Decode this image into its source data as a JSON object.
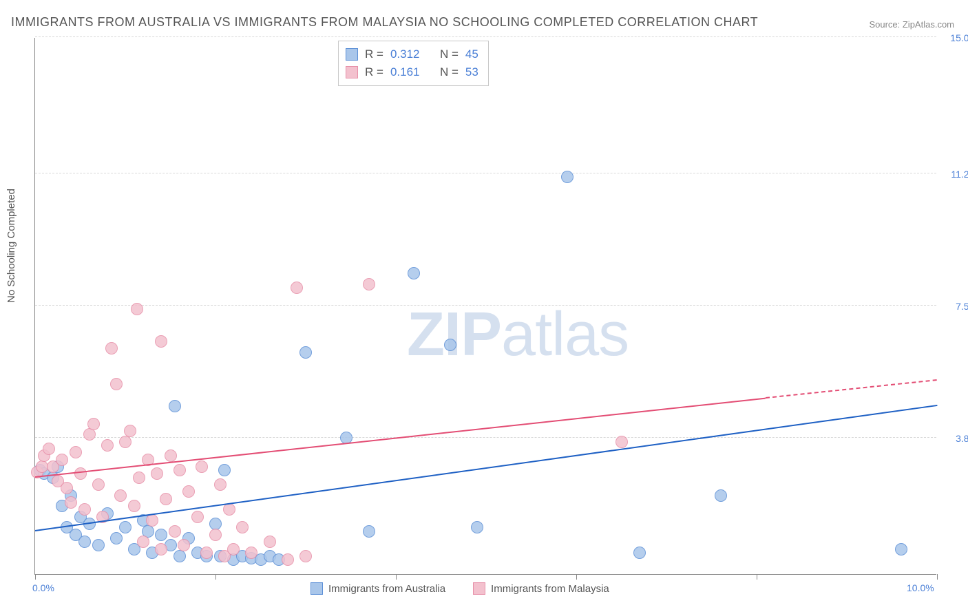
{
  "title": "IMMIGRANTS FROM AUSTRALIA VS IMMIGRANTS FROM MALAYSIA NO SCHOOLING COMPLETED CORRELATION CHART",
  "source": "Source: ZipAtlas.com",
  "ylabel": "No Schooling Completed",
  "watermark_a": "ZIP",
  "watermark_b": "atlas",
  "chart": {
    "type": "scatter",
    "background_color": "#ffffff",
    "grid_color": "#d8d8d8",
    "axis_color": "#888888",
    "label_color": "#555555",
    "value_color": "#4a7fd6",
    "xlim": [
      0.0,
      10.0
    ],
    "ylim": [
      0.0,
      15.0
    ],
    "xticks": [
      0.0,
      2.0,
      4.0,
      6.0,
      8.0,
      10.0
    ],
    "xtick_labels": [
      "0.0%",
      "",
      "",
      "",
      "",
      "10.0%"
    ],
    "yticks": [
      3.8,
      7.5,
      11.2,
      15.0
    ],
    "ytick_labels": [
      "3.8%",
      "7.5%",
      "11.2%",
      "15.0%"
    ],
    "marker_radius": 9,
    "marker_fill_opacity": 0.28,
    "line_width": 2,
    "title_fontsize": 18,
    "label_fontsize": 15,
    "tick_fontsize": 14
  },
  "series": [
    {
      "name": "Immigrants from Australia",
      "color_stroke": "#5b8fd6",
      "color_fill": "#a9c6ea",
      "trend_color": "#1e60c4",
      "R": "0.312",
      "N": "45",
      "trend": {
        "x1": 0.0,
        "y1": 1.2,
        "x2": 10.0,
        "y2": 4.7
      },
      "points": [
        [
          0.05,
          2.9
        ],
        [
          0.1,
          2.8
        ],
        [
          0.2,
          2.7
        ],
        [
          0.25,
          3.0
        ],
        [
          0.3,
          1.9
        ],
        [
          0.35,
          1.3
        ],
        [
          0.4,
          2.2
        ],
        [
          0.45,
          1.1
        ],
        [
          0.5,
          1.6
        ],
        [
          0.55,
          0.9
        ],
        [
          0.6,
          1.4
        ],
        [
          0.7,
          0.8
        ],
        [
          0.8,
          1.7
        ],
        [
          0.9,
          1.0
        ],
        [
          1.0,
          1.3
        ],
        [
          1.1,
          0.7
        ],
        [
          1.2,
          1.5
        ],
        [
          1.25,
          1.2
        ],
        [
          1.3,
          0.6
        ],
        [
          1.4,
          1.1
        ],
        [
          1.5,
          0.8
        ],
        [
          1.55,
          4.7
        ],
        [
          1.6,
          0.5
        ],
        [
          1.7,
          1.0
        ],
        [
          1.8,
          0.6
        ],
        [
          1.9,
          0.5
        ],
        [
          2.0,
          1.4
        ],
        [
          2.05,
          0.5
        ],
        [
          2.1,
          2.9
        ],
        [
          2.2,
          0.4
        ],
        [
          2.3,
          0.5
        ],
        [
          2.4,
          0.45
        ],
        [
          2.5,
          0.4
        ],
        [
          2.6,
          0.5
        ],
        [
          2.7,
          0.4
        ],
        [
          3.0,
          6.2
        ],
        [
          3.45,
          3.8
        ],
        [
          3.7,
          1.2
        ],
        [
          4.2,
          8.4
        ],
        [
          4.6,
          6.4
        ],
        [
          4.9,
          1.3
        ],
        [
          5.9,
          11.1
        ],
        [
          6.7,
          0.6
        ],
        [
          7.6,
          2.2
        ],
        [
          9.6,
          0.7
        ]
      ]
    },
    {
      "name": "Immigrants from Malaysia",
      "color_stroke": "#e78fa8",
      "color_fill": "#f3c1ce",
      "trend_color": "#e34d74",
      "R": "0.161",
      "N": "53",
      "trend": {
        "x1": 0.0,
        "y1": 2.7,
        "x2": 8.1,
        "y2": 4.9
      },
      "trend_dash": {
        "x1": 8.1,
        "y1": 4.9,
        "x2": 10.0,
        "y2": 5.4
      },
      "points": [
        [
          0.02,
          2.85
        ],
        [
          0.08,
          3.0
        ],
        [
          0.1,
          3.3
        ],
        [
          0.15,
          3.5
        ],
        [
          0.2,
          3.0
        ],
        [
          0.25,
          2.6
        ],
        [
          0.3,
          3.2
        ],
        [
          0.35,
          2.4
        ],
        [
          0.4,
          2.0
        ],
        [
          0.45,
          3.4
        ],
        [
          0.5,
          2.8
        ],
        [
          0.55,
          1.8
        ],
        [
          0.6,
          3.9
        ],
        [
          0.65,
          4.2
        ],
        [
          0.7,
          2.5
        ],
        [
          0.75,
          1.6
        ],
        [
          0.8,
          3.6
        ],
        [
          0.85,
          6.3
        ],
        [
          0.9,
          5.3
        ],
        [
          0.95,
          2.2
        ],
        [
          1.0,
          3.7
        ],
        [
          1.05,
          4.0
        ],
        [
          1.1,
          1.9
        ],
        [
          1.13,
          7.4
        ],
        [
          1.15,
          2.7
        ],
        [
          1.2,
          0.9
        ],
        [
          1.25,
          3.2
        ],
        [
          1.3,
          1.5
        ],
        [
          1.35,
          2.8
        ],
        [
          1.4,
          0.7
        ],
        [
          1.4,
          6.5
        ],
        [
          1.45,
          2.1
        ],
        [
          1.5,
          3.3
        ],
        [
          1.55,
          1.2
        ],
        [
          1.6,
          2.9
        ],
        [
          1.65,
          0.8
        ],
        [
          1.7,
          2.3
        ],
        [
          1.8,
          1.6
        ],
        [
          1.85,
          3.0
        ],
        [
          1.9,
          0.6
        ],
        [
          2.0,
          1.1
        ],
        [
          2.05,
          2.5
        ],
        [
          2.1,
          0.5
        ],
        [
          2.15,
          1.8
        ],
        [
          2.2,
          0.7
        ],
        [
          2.3,
          1.3
        ],
        [
          2.4,
          0.6
        ],
        [
          2.6,
          0.9
        ],
        [
          2.8,
          0.4
        ],
        [
          2.9,
          8.0
        ],
        [
          3.0,
          0.5
        ],
        [
          3.7,
          8.1
        ],
        [
          6.5,
          3.7
        ]
      ]
    }
  ],
  "legend_R_label": "R =",
  "legend_N_label": "N ="
}
